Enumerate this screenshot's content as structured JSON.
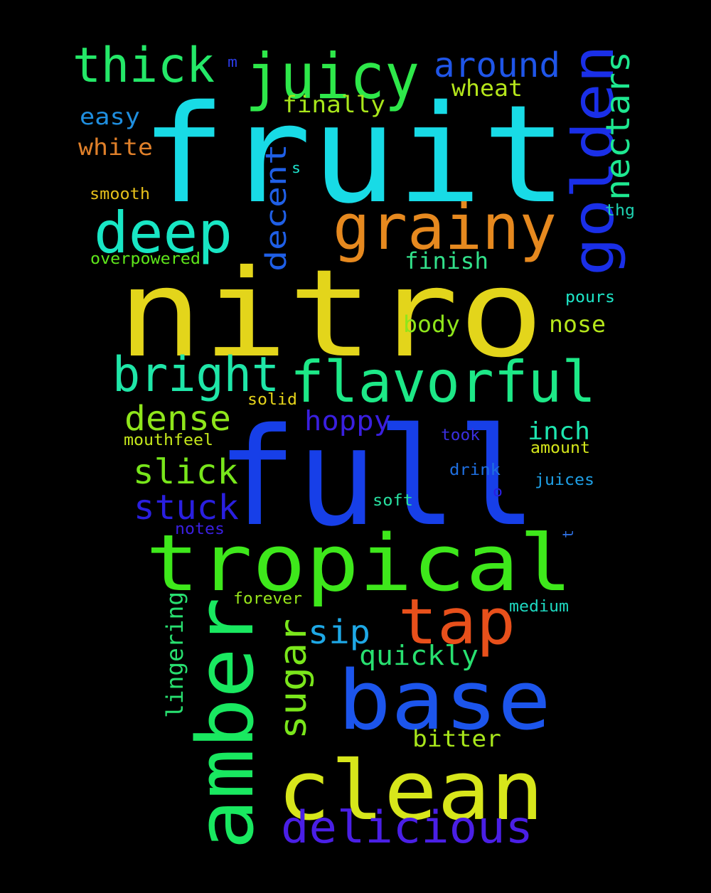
{
  "wordcloud": {
    "background": "#000000",
    "words": [
      {
        "text": "fruit",
        "color": "#18dbe6"
      },
      {
        "text": "nitro",
        "color": "#e3d51b"
      },
      {
        "text": "full",
        "color": "#173fe8"
      },
      {
        "text": "tropical",
        "color": "#3ee81b"
      },
      {
        "text": "base",
        "color": "#1c55ec"
      },
      {
        "text": "clean",
        "color": "#d7e61b"
      },
      {
        "text": "amber",
        "color": "#19e860"
      },
      {
        "text": "juicy",
        "color": "#2ee84a"
      },
      {
        "text": "grainy",
        "color": "#e6891f"
      },
      {
        "text": "flavorful",
        "color": "#1de887"
      },
      {
        "text": "golden",
        "color": "#1a2fe8"
      },
      {
        "text": "deep",
        "color": "#18e6c4"
      },
      {
        "text": "bright",
        "color": "#1fe6a8"
      },
      {
        "text": "tap",
        "color": "#e8501b"
      },
      {
        "text": "thick",
        "color": "#24e868"
      },
      {
        "text": "delicious",
        "color": "#4a1fe6"
      },
      {
        "text": "nectars",
        "color": "#1ee890"
      },
      {
        "text": "around",
        "color": "#1f55e8"
      },
      {
        "text": "dense",
        "color": "#8fe61b"
      },
      {
        "text": "slick",
        "color": "#78e61b"
      },
      {
        "text": "stuck",
        "color": "#2a1fe0"
      },
      {
        "text": "sugar",
        "color": "#7ae61b"
      },
      {
        "text": "decent",
        "color": "#1f5fe6"
      },
      {
        "text": "hoppy",
        "color": "#3a1fe0"
      },
      {
        "text": "sip",
        "color": "#1ea8e6"
      },
      {
        "text": "quickly",
        "color": "#28e070"
      },
      {
        "text": "inch",
        "color": "#1ee6b0"
      },
      {
        "text": "nose",
        "color": "#b5e61b"
      },
      {
        "text": "body",
        "color": "#8fe61b"
      },
      {
        "text": "finish",
        "color": "#32e08a"
      },
      {
        "text": "finally",
        "color": "#a8e61b"
      },
      {
        "text": "wheat",
        "color": "#b5e61b"
      },
      {
        "text": "easy",
        "color": "#1f8fe0"
      },
      {
        "text": "white",
        "color": "#e0802a"
      },
      {
        "text": "bitter",
        "color": "#a8e61b"
      },
      {
        "text": "lingering",
        "color": "#28e070"
      },
      {
        "text": "smooth",
        "color": "#e6c01b"
      },
      {
        "text": "overpowered",
        "color": "#5ee61b"
      },
      {
        "text": "solid",
        "color": "#e6d41b"
      },
      {
        "text": "mouthfeel",
        "color": "#c4e61b"
      },
      {
        "text": "took",
        "color": "#3a2fe0"
      },
      {
        "text": "amount",
        "color": "#d4e61b"
      },
      {
        "text": "drink",
        "color": "#1f6fe0"
      },
      {
        "text": "juices",
        "color": "#1fa0e6"
      },
      {
        "text": "soft",
        "color": "#28e0a0"
      },
      {
        "text": "notes",
        "color": "#3a1fe0"
      },
      {
        "text": "forever",
        "color": "#98e61b"
      },
      {
        "text": "medium",
        "color": "#1ed8c0"
      },
      {
        "text": "pours",
        "color": "#1ee6c8"
      },
      {
        "text": "thg",
        "color": "#1ed0b0"
      },
      {
        "text": "m",
        "color": "#2a3ae0"
      },
      {
        "text": "s",
        "color": "#1ee6d0"
      },
      {
        "text": "o",
        "color": "#2a1fe0"
      },
      {
        "text": "t",
        "color": "#2e6fe0"
      }
    ]
  }
}
